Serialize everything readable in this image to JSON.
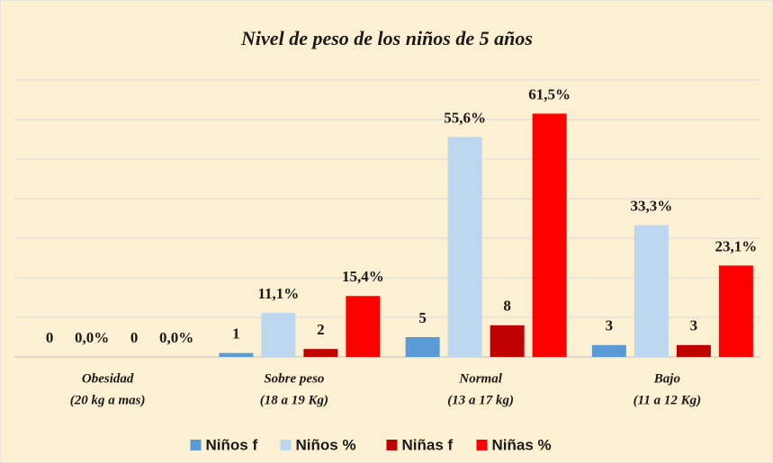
{
  "chart_data": {
    "type": "bar",
    "title": "Nivel de peso de los niños de 5 años",
    "categories": [
      [
        "Obesidad",
        "(20 kg a mas)"
      ],
      [
        "Sobre peso",
        "(18 a 19 Kg)"
      ],
      [
        "Normal",
        "(13 a 17 kg)"
      ],
      [
        "Bajo",
        "(11 a 12 Kg)"
      ]
    ],
    "series": [
      {
        "name": "Niños f",
        "color": "#5b9bd5",
        "values": [
          0,
          1,
          5,
          3
        ]
      },
      {
        "name": "Niños %",
        "color": "#bdd7ee",
        "values": [
          0,
          11.1,
          55.6,
          33.3
        ],
        "value_labels": [
          "0,0%",
          "11,1%",
          "55,6%",
          "33,3%"
        ]
      },
      {
        "name": "Niñas f",
        "color": "#c00000",
        "values": [
          0,
          2,
          8,
          3
        ]
      },
      {
        "name": "Niñas %",
        "color": "#ff0000",
        "values": [
          0,
          15.4,
          61.5,
          23.1
        ],
        "value_labels": [
          "0,0%",
          "15,4%",
          "61,5%",
          "23,1%"
        ]
      }
    ],
    "ylim": [
      0,
      70
    ],
    "yticks": [
      0,
      10,
      20,
      30,
      40,
      50,
      60,
      70
    ],
    "grid": true,
    "legend": "bottom"
  }
}
